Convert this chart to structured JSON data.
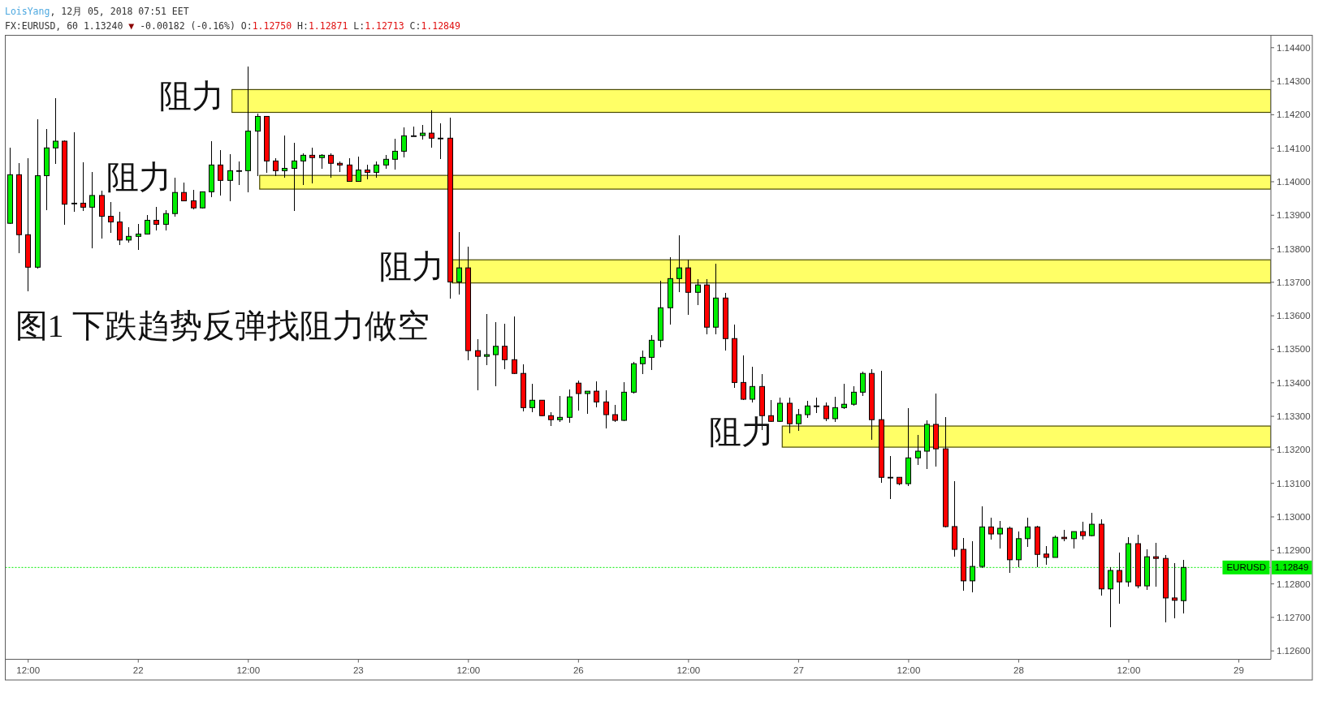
{
  "chart_data": {
    "type": "candlestick",
    "title": "图1 下跌趋势反弹找阻力做空",
    "subtitle": "FX:EURUSD, 60 1.13240 ▼ -0.00182 (-0.16%) O:1.12750 H:1.12871 L:1.12713 C:1.12849",
    "annotations": [
      "LoisYang, 12月 05, 2018 07:51 EET"
    ],
    "categories": [
      null,
      null,
      "12:00",
      null,
      null,
      null,
      null,
      null,
      null,
      null,
      null,
      null,
      null,
      null,
      "22",
      null,
      null,
      null,
      null,
      null,
      null,
      null,
      null,
      null,
      null,
      null,
      "12:00",
      null,
      null,
      null,
      null,
      null,
      null,
      null,
      null,
      null,
      null,
      null,
      "23",
      null,
      null,
      null,
      null,
      null,
      null,
      null,
      null,
      null,
      null,
      null,
      "12:00",
      null,
      null,
      null,
      null,
      null,
      null,
      null,
      null,
      null,
      null,
      null,
      "26",
      null,
      null,
      null,
      null,
      null,
      null,
      null,
      null,
      null,
      null,
      null,
      "12:00",
      null,
      null,
      null,
      null,
      null,
      null,
      null,
      null,
      null,
      null,
      null,
      "27",
      null,
      null,
      null,
      null,
      null,
      null,
      null,
      null,
      null,
      null,
      null,
      "12:00",
      null,
      null,
      null,
      null,
      null,
      null,
      null,
      null,
      null,
      null,
      null,
      "28",
      null,
      null,
      null,
      null,
      null,
      null,
      null,
      null,
      null,
      null,
      null,
      "12:00",
      null,
      null,
      null,
      null,
      null,
      null,
      null,
      null,
      null,
      null,
      null,
      "29",
      null,
      null,
      null
    ],
    "ohlc": [
      [
        1.13876,
        1.14101,
        1.13876,
        1.14021
      ],
      [
        1.14021,
        1.14055,
        1.13788,
        1.13842
      ],
      [
        1.13842,
        1.14068,
        1.13674,
        1.13745
      ],
      [
        1.13745,
        1.14184,
        1.13742,
        1.14018
      ],
      [
        1.14018,
        1.14155,
        1.13916,
        1.14101
      ],
      [
        1.14101,
        1.14249,
        1.14054,
        1.14121
      ],
      [
        1.14121,
        1.14122,
        1.13874,
        1.13933
      ],
      [
        1.13936,
        1.14147,
        1.13911,
        1.13936
      ],
      [
        1.13936,
        1.14058,
        1.13913,
        1.13924
      ],
      [
        1.13924,
        1.14027,
        1.13803,
        1.13959
      ],
      [
        1.13959,
        1.13971,
        1.13832,
        1.13897
      ],
      [
        1.13897,
        1.13937,
        1.13848,
        1.1388
      ],
      [
        1.1388,
        1.1391,
        1.13812,
        1.13826
      ],
      [
        1.13826,
        1.13862,
        1.1382,
        1.13837
      ],
      [
        1.13837,
        1.13872,
        1.13798,
        1.13844
      ],
      [
        1.13844,
        1.139,
        1.13844,
        1.13885
      ],
      [
        1.13885,
        1.13924,
        1.13855,
        1.13873
      ],
      [
        1.13873,
        1.13913,
        1.13855,
        1.13905
      ],
      [
        1.13905,
        1.1401,
        1.13897,
        1.13968
      ],
      [
        1.13968,
        1.13997,
        1.13943,
        1.13943
      ],
      [
        1.13943,
        1.13975,
        1.13918,
        1.13922
      ],
      [
        1.13922,
        1.1397,
        1.13922,
        1.1397
      ],
      [
        1.1397,
        1.14121,
        1.13955,
        1.1405
      ],
      [
        1.1405,
        1.14094,
        1.1396,
        1.14004
      ],
      [
        1.14004,
        1.1408,
        1.13943,
        1.14033
      ],
      [
        1.14033,
        1.1406,
        1.13992,
        1.14033
      ],
      [
        1.14033,
        1.14343,
        1.1397,
        1.14151
      ],
      [
        1.14151,
        1.14203,
        1.14018,
        1.14195
      ],
      [
        1.14195,
        1.14195,
        1.14027,
        1.14062
      ],
      [
        1.14062,
        1.14069,
        1.14018,
        1.14033
      ],
      [
        1.14033,
        1.14137,
        1.14013,
        1.1404
      ],
      [
        1.1404,
        1.14116,
        1.13914,
        1.14062
      ],
      [
        1.14062,
        1.14084,
        1.13992,
        1.14079
      ],
      [
        1.14079,
        1.14101,
        1.13997,
        1.14072
      ],
      [
        1.14072,
        1.1408,
        1.1404,
        1.14079
      ],
      [
        1.14079,
        1.14084,
        1.14013,
        1.14055
      ],
      [
        1.14055,
        1.1406,
        1.1403,
        1.1405
      ],
      [
        1.1405,
        1.14069,
        1.14001,
        1.14001
      ],
      [
        1.14001,
        1.14075,
        1.14001,
        1.14035
      ],
      [
        1.14035,
        1.1405,
        1.14009,
        1.14028
      ],
      [
        1.14028,
        1.1406,
        1.14013,
        1.1405
      ],
      [
        1.1405,
        1.14079,
        1.1404,
        1.14067
      ],
      [
        1.14067,
        1.14126,
        1.14037,
        1.14091
      ],
      [
        1.14091,
        1.14162,
        1.14074,
        1.14137
      ],
      [
        1.14137,
        1.14164,
        1.14137,
        1.14137
      ],
      [
        1.14138,
        1.14168,
        1.14126,
        1.14145
      ],
      [
        1.14145,
        1.14213,
        1.14102,
        1.1413
      ],
      [
        1.1413,
        1.14174,
        1.14069,
        1.1413
      ],
      [
        1.1413,
        1.14189,
        1.13652,
        1.13701
      ],
      [
        1.13701,
        1.13848,
        1.13664,
        1.13743
      ],
      [
        1.13743,
        1.13805,
        1.13468,
        1.13496
      ],
      [
        1.13496,
        1.13528,
        1.13379,
        1.13479
      ],
      [
        1.13479,
        1.13605,
        1.13455,
        1.13484
      ],
      [
        1.13484,
        1.13579,
        1.13391,
        1.13509
      ],
      [
        1.13509,
        1.13574,
        1.13443,
        1.13469
      ],
      [
        1.13469,
        1.13598,
        1.13428,
        1.13428
      ],
      [
        1.13428,
        1.13455,
        1.13316,
        1.13326
      ],
      [
        1.13326,
        1.13395,
        1.13314,
        1.13348
      ],
      [
        1.13348,
        1.13348,
        1.13302,
        1.13302
      ],
      [
        1.13302,
        1.13312,
        1.13272,
        1.1329
      ],
      [
        1.1329,
        1.1336,
        1.13285,
        1.13297
      ],
      [
        1.13297,
        1.1338,
        1.13282,
        1.13358
      ],
      [
        1.13399,
        1.13405,
        1.13318,
        1.13368
      ],
      [
        1.13368,
        1.13375,
        1.13309,
        1.13375
      ],
      [
        1.13375,
        1.13402,
        1.13328,
        1.13343
      ],
      [
        1.13343,
        1.13376,
        1.13265,
        1.13305
      ],
      [
        1.13305,
        1.13334,
        1.13284,
        1.13288
      ],
      [
        1.13288,
        1.13401,
        1.13288,
        1.13372
      ],
      [
        1.13372,
        1.13461,
        1.1337,
        1.13457
      ],
      [
        1.13457,
        1.13496,
        1.13427,
        1.13476
      ],
      [
        1.13476,
        1.13542,
        1.13439,
        1.13527
      ],
      [
        1.13527,
        1.13704,
        1.13508,
        1.13624
      ],
      [
        1.13624,
        1.13774,
        1.13576,
        1.13711
      ],
      [
        1.13711,
        1.13838,
        1.13672,
        1.13743
      ],
      [
        1.13743,
        1.13767,
        1.13605,
        1.1367
      ],
      [
        1.1367,
        1.13709,
        1.13633,
        1.13692
      ],
      [
        1.13692,
        1.13709,
        1.13547,
        1.13566
      ],
      [
        1.13566,
        1.13755,
        1.13547,
        1.13653
      ],
      [
        1.13653,
        1.13668,
        1.13497,
        1.13532
      ],
      [
        1.13532,
        1.13573,
        1.13385,
        1.13401
      ],
      [
        1.13401,
        1.13481,
        1.13351,
        1.13351
      ],
      [
        1.13351,
        1.13447,
        1.13343,
        1.13389
      ],
      [
        1.13389,
        1.13426,
        1.1326,
        1.13302
      ],
      [
        1.13302,
        1.13347,
        1.13285,
        1.13285
      ],
      [
        1.13285,
        1.13354,
        1.13285,
        1.13339
      ],
      [
        1.13339,
        1.13355,
        1.13251,
        1.13278
      ],
      [
        1.13278,
        1.1332,
        1.13258,
        1.13305
      ],
      [
        1.13305,
        1.13344,
        1.13297,
        1.13331
      ],
      [
        1.13331,
        1.13355,
        1.1331,
        1.13331
      ],
      [
        1.13331,
        1.13341,
        1.13288,
        1.13293
      ],
      [
        1.13293,
        1.13358,
        1.13285,
        1.13326
      ],
      [
        1.13326,
        1.13397,
        1.13322,
        1.13336
      ],
      [
        1.13336,
        1.13388,
        1.13334,
        1.13372
      ],
      [
        1.13372,
        1.13431,
        1.13363,
        1.13428
      ],
      [
        1.13428,
        1.13439,
        1.13231,
        1.1329
      ],
      [
        1.1329,
        1.13434,
        1.13104,
        1.13118
      ],
      [
        1.13118,
        1.13181,
        1.13055,
        1.13118
      ],
      [
        1.13118,
        1.13118,
        1.13096,
        1.13099
      ],
      [
        1.13099,
        1.13322,
        1.13093,
        1.13176
      ],
      [
        1.13176,
        1.13243,
        1.13156,
        1.13196
      ],
      [
        1.13196,
        1.13288,
        1.13143,
        1.13276
      ],
      [
        1.13276,
        1.13366,
        1.13151,
        1.13203
      ],
      [
        1.13203,
        1.13297,
        1.12969,
        1.12971
      ],
      [
        1.12971,
        1.13106,
        1.12883,
        1.12903
      ],
      [
        1.12903,
        1.12935,
        1.12781,
        1.12809
      ],
      [
        1.12809,
        1.12926,
        1.12776,
        1.12852
      ],
      [
        1.12852,
        1.1303,
        1.12849,
        1.1297
      ],
      [
        1.1297,
        1.12996,
        1.12934,
        1.12949
      ],
      [
        1.12949,
        1.12987,
        1.12906,
        1.12966
      ],
      [
        1.12966,
        1.1297,
        1.12834,
        1.12872
      ],
      [
        1.12872,
        1.12955,
        1.12851,
        1.12935
      ],
      [
        1.12935,
        1.12996,
        1.12912,
        1.1297
      ],
      [
        1.1297,
        1.12972,
        1.12851,
        1.12888
      ],
      [
        1.12889,
        1.12911,
        1.12859,
        1.12879
      ],
      [
        1.12879,
        1.12944,
        1.12879,
        1.12939
      ],
      [
        1.12939,
        1.1296,
        1.12929,
        1.12935
      ],
      [
        1.12935,
        1.12956,
        1.12906,
        1.12956
      ],
      [
        1.12956,
        1.12984,
        1.12934,
        1.12944
      ],
      [
        1.12944,
        1.1301,
        1.12944,
        1.12978
      ],
      [
        1.12978,
        1.12991,
        1.12766,
        1.12785
      ],
      [
        1.12785,
        1.12849,
        1.12672,
        1.1284
      ],
      [
        1.1284,
        1.12893,
        1.12743,
        1.12806
      ],
      [
        1.12806,
        1.12938,
        1.12793,
        1.1292
      ],
      [
        1.1292,
        1.12945,
        1.12787,
        1.12794
      ],
      [
        1.12794,
        1.12901,
        1.12784,
        1.12881
      ],
      [
        1.12881,
        1.12921,
        1.12793,
        1.12876
      ],
      [
        1.12876,
        1.12885,
        1.12687,
        1.12758
      ],
      [
        1.12758,
        1.1286,
        1.12699,
        1.12751
      ],
      [
        1.1275,
        1.12871,
        1.12713,
        1.12849
      ],
      null,
      null,
      null,
      null,
      null,
      null,
      null,
      null,
      null
    ],
    "colors": [
      "#00ee00",
      "#ff0000",
      "#ff0000",
      "#00ee00",
      "#00ee00",
      "#00ee00",
      "#ff0000",
      "#000000",
      "#ff0000",
      "#00ee00",
      "#ff0000",
      "#ff0000",
      "#ff0000",
      "#00ee00",
      "#00ee00",
      "#00ee00",
      "#ff0000",
      "#00ee00",
      "#00ee00",
      "#ff0000",
      "#ff0000",
      "#00ee00",
      "#00ee00",
      "#ff0000",
      "#00ee00",
      "#000000",
      "#00ee00",
      "#00ee00",
      "#ff0000",
      "#ff0000",
      "#00ee00",
      "#00ee00",
      "#00ee00",
      "#ff0000",
      "#00ee00",
      "#ff0000",
      "#ff0000",
      "#ff0000",
      "#00ee00",
      "#ff0000",
      "#00ee00",
      "#00ee00",
      "#00ee00",
      "#00ee00",
      "#000000",
      "#00ee00",
      "#ff0000",
      "#000000",
      "#ff0000",
      "#00ee00",
      "#ff0000",
      "#ff0000",
      "#00ee00",
      "#00ee00",
      "#ff0000",
      "#ff0000",
      "#ff0000",
      "#00ee00",
      "#ff0000",
      "#ff0000",
      "#00ee00",
      "#00ee00",
      "#ff0000",
      "#00ee00",
      "#ff0000",
      "#ff0000",
      "#ff0000",
      "#00ee00",
      "#00ee00",
      "#00ee00",
      "#00ee00",
      "#00ee00",
      "#00ee00",
      "#00ee00",
      "#ff0000",
      "#00ee00",
      "#ff0000",
      "#00ee00",
      "#ff0000",
      "#ff0000",
      "#ff0000",
      "#00ee00",
      "#ff0000",
      "#ff0000",
      "#00ee00",
      "#ff0000",
      "#00ee00",
      "#00ee00",
      "#000000",
      "#ff0000",
      "#00ee00",
      "#00ee00",
      "#00ee00",
      "#00ee00",
      "#ff0000",
      "#ff0000",
      "#000000",
      "#ff0000",
      "#00ee00",
      "#00ee00",
      "#00ee00",
      "#ff0000",
      "#ff0000",
      "#ff0000",
      "#ff0000",
      "#00ee00",
      "#00ee00",
      "#ff0000",
      "#00ee00",
      "#ff0000",
      "#00ee00",
      "#00ee00",
      "#ff0000",
      "#ff0000",
      "#00ee00",
      "#ff0000",
      "#00ee00",
      "#ff0000",
      "#00ee00",
      "#ff0000",
      "#00ee00",
      "#ff0000",
      "#00ee00",
      "#ff0000",
      "#00ee00",
      "#ff0000",
      "#ff0000",
      "#ff0000",
      "#00ee00",
      null,
      null,
      null,
      null,
      null,
      null,
      null,
      null,
      null
    ],
    "ylim": [
      1.12575,
      1.14437
    ],
    "yticks": [
      {
        "value": 1.126,
        "label": "1.12600"
      },
      {
        "value": 1.127,
        "label": "1.12700"
      },
      {
        "value": 1.128,
        "label": "1.12800"
      },
      {
        "value": 1.12849,
        "label": "1.12849"
      },
      {
        "value": 1.129,
        "label": "1.12900"
      },
      {
        "value": 1.13,
        "label": "1.13000"
      },
      {
        "value": 1.131,
        "label": "1.13100"
      },
      {
        "value": 1.132,
        "label": "1.13200"
      },
      {
        "value": 1.133,
        "label": "1.13300"
      },
      {
        "value": 1.134,
        "label": "1.13400"
      },
      {
        "value": 1.135,
        "label": "1.13500"
      },
      {
        "value": 1.136,
        "label": "1.13600"
      },
      {
        "value": 1.137,
        "label": "1.13700"
      },
      {
        "value": 1.138,
        "label": "1.13800"
      },
      {
        "value": 1.139,
        "label": "1.13900"
      },
      {
        "value": 1.14,
        "label": "1.14000"
      },
      {
        "value": 1.141,
        "label": "1.14100"
      },
      {
        "value": 1.142,
        "label": "1.14200"
      },
      {
        "value": 1.143,
        "label": "1.14300"
      },
      {
        "value": 1.144,
        "label": "1.14400"
      }
    ],
    "bands": [
      {
        "axis": "y",
        "from": 1.14207,
        "to": 1.14275,
        "label": "阻力",
        "color": "#ffff66"
      },
      {
        "axis": "y",
        "from": 1.13978,
        "to": 1.14019,
        "label": "阻力",
        "color": "#ffff66"
      },
      {
        "axis": "y",
        "from": 1.13698,
        "to": 1.13767,
        "label": "阻力",
        "color": "#ffff66"
      },
      {
        "axis": "y",
        "from": 1.13208,
        "to": 1.13271,
        "label": "阻力",
        "color": "#ffff66"
      }
    ],
    "ref_lines": [
      {
        "axis": "y",
        "value": 1.12849,
        "label": "EURUSD",
        "color": "#00ee00",
        "line_style": "dotted"
      }
    ]
  }
}
